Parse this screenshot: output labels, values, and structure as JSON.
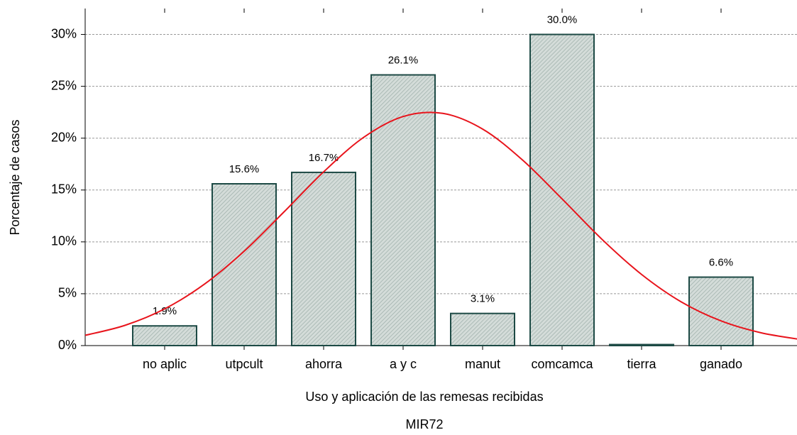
{
  "chart_data": {
    "type": "bar",
    "x_label": "Uso y aplicación de las remesas recibidas",
    "subtitle": "MIR72",
    "y_label": "Porcentaje de casos",
    "categories": [
      "no aplic",
      "utpcult",
      "ahorra",
      "a y c",
      "manut",
      "comcamca",
      "tierra",
      "ganado"
    ],
    "values": [
      1.9,
      15.6,
      16.7,
      26.1,
      3.1,
      30.0,
      0.1,
      6.6
    ],
    "value_labels": [
      "1.9%",
      "15.6%",
      "16.7%",
      "26.1%",
      "3.1%",
      "30.0%",
      null,
      "6.6%"
    ],
    "color": "#c5d1cd",
    "edge_color": "#1d4a45",
    "xlim": [
      0,
      9
    ],
    "ylim": [
      0,
      32.5
    ],
    "yticks": [
      {
        "value": 0,
        "label": "0%"
      },
      {
        "value": 5,
        "label": "5%"
      },
      {
        "value": 10,
        "label": "10%"
      },
      {
        "value": 15,
        "label": "15%"
      },
      {
        "value": 20,
        "label": "20%"
      },
      {
        "value": 25,
        "label": "25%"
      },
      {
        "value": 30,
        "label": "30%"
      }
    ],
    "grid": true,
    "curve": {
      "color": "#e8141c",
      "x": [
        0,
        0.5,
        1,
        1.5,
        2,
        2.5,
        3,
        3.5,
        4,
        4.5,
        5,
        5.5,
        6,
        6.5,
        7,
        7.5,
        8,
        8.5,
        9
      ],
      "values": [
        0.99,
        1.95,
        3.54,
        5.92,
        9.1,
        12.88,
        16.75,
        20.06,
        22.09,
        22.39,
        20.88,
        17.91,
        14.14,
        10.26,
        6.86,
        4.21,
        2.38,
        1.24,
        0.59
      ]
    }
  }
}
